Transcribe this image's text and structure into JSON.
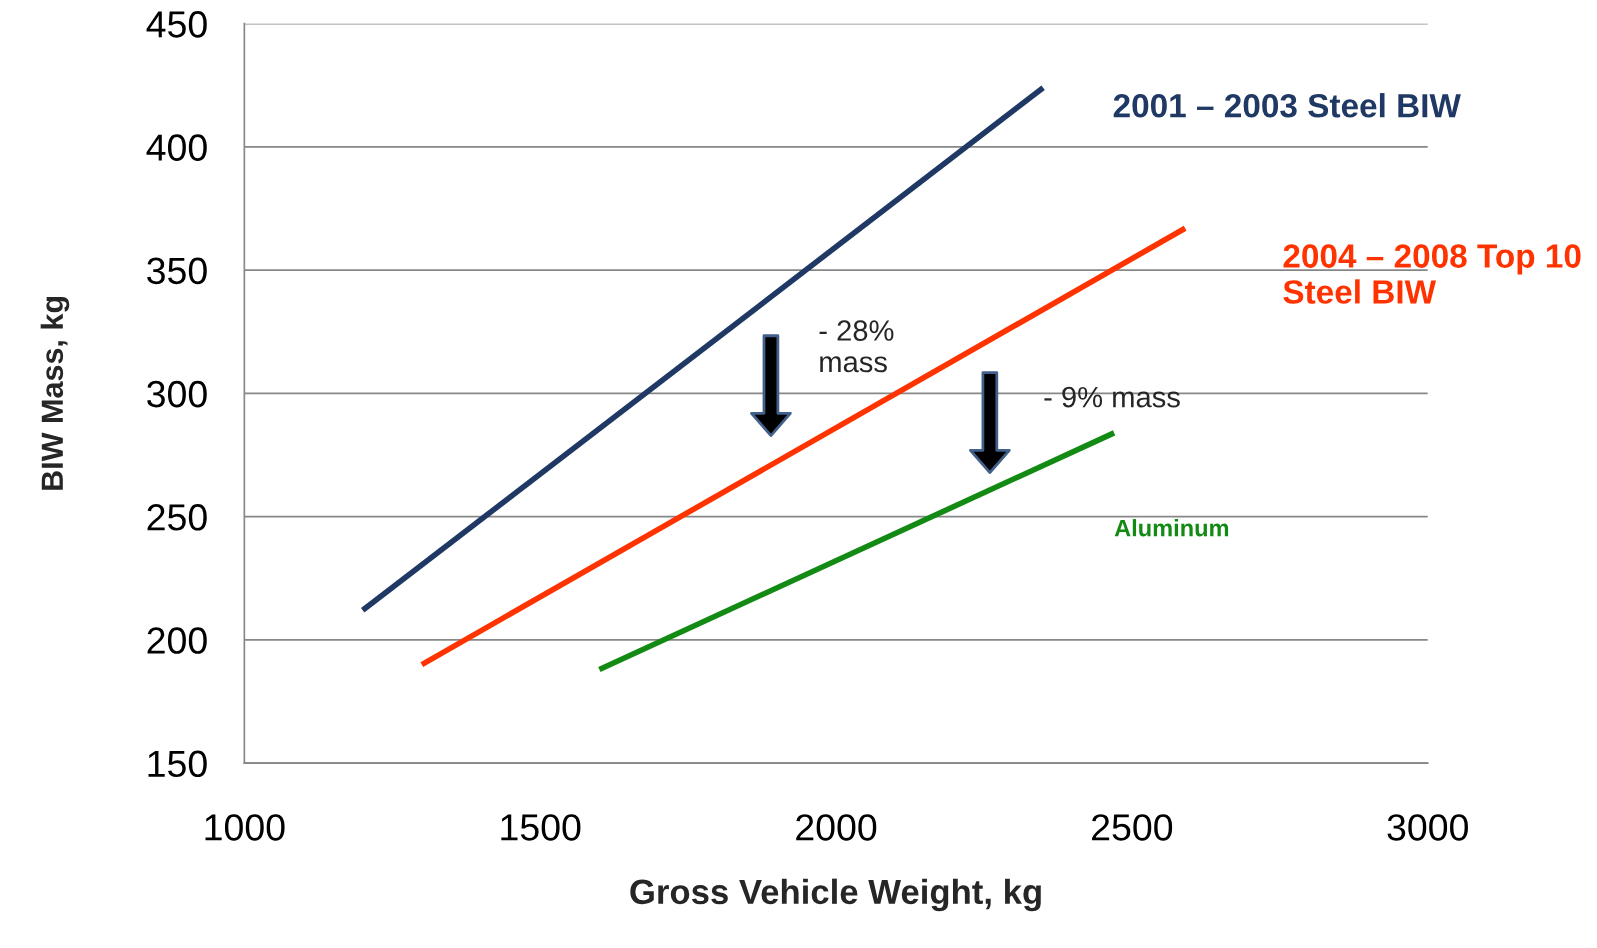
{
  "chart_data": {
    "type": "line",
    "xlabel": "Gross Vehicle Weight, kg",
    "ylabel": "BIW Mass, kg",
    "series": [
      {
        "name": "2001 – 2003 Steel BIW",
        "color": "#1f3864",
        "x": [
          1200,
          2350
        ],
        "values": [
          212,
          424
        ]
      },
      {
        "name": "2004 – 2008 Top 10 Steel BIW",
        "color": "#ff3300",
        "x": [
          1300,
          2590
        ],
        "values": [
          190,
          367
        ]
      },
      {
        "name": "Aluminum",
        "color": "#138a13",
        "x": [
          1600,
          2470
        ],
        "values": [
          188,
          284
        ]
      }
    ],
    "annotations": [
      "- 28%\nmass",
      "- 9% mass"
    ],
    "xlim": [
      1000,
      3000
    ],
    "xticks": [
      1000,
      1500,
      2000,
      2500,
      3000
    ],
    "ylim": [
      150,
      450
    ],
    "yticks": [
      150,
      200,
      250,
      300,
      350,
      400,
      450
    ],
    "grid": "y",
    "marker": "none",
    "line_style": "solid"
  }
}
